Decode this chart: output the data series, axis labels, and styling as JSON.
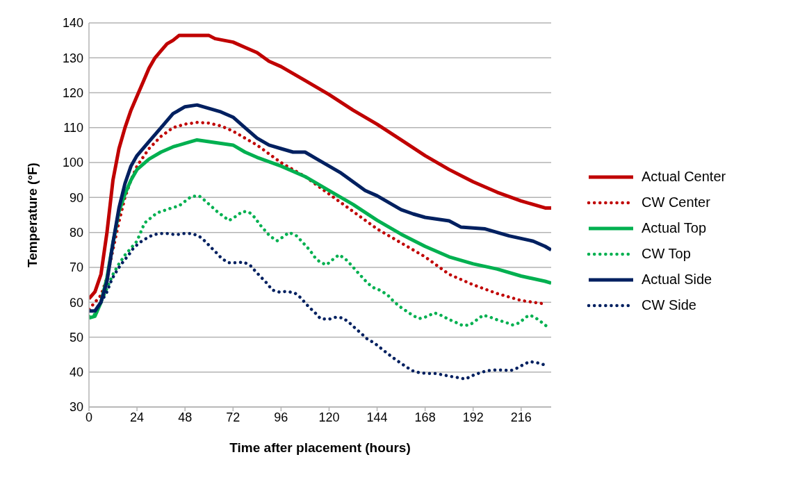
{
  "chart_data": {
    "type": "line",
    "xlabel": "Time after placement (hours)",
    "ylabel": "Temperature (°F)",
    "xlim": [
      0,
      231
    ],
    "xticks": [
      0,
      24,
      48,
      72,
      96,
      120,
      144,
      168,
      192,
      216
    ],
    "ylim": [
      30,
      140
    ],
    "yticks": [
      30,
      40,
      50,
      60,
      70,
      80,
      90,
      100,
      110,
      120,
      130,
      140
    ],
    "grid": "y",
    "legend": "right",
    "marker": "none",
    "series": [
      {
        "name": "Actual Center",
        "color": "#c00000",
        "line_style": "solid",
        "x": [
          0,
          3,
          6,
          9,
          12,
          15,
          18,
          21,
          24,
          27,
          30,
          33,
          36,
          39,
          42,
          45,
          60,
          63,
          72,
          78,
          84,
          90,
          96,
          102,
          108,
          120,
          132,
          144,
          156,
          168,
          180,
          192,
          204,
          216,
          228,
          231
        ],
        "values": [
          61,
          63,
          68,
          80,
          95,
          104,
          110,
          115,
          119,
          123,
          127,
          130,
          132,
          134,
          135,
          136.4,
          136.4,
          135.5,
          134.5,
          133,
          131.5,
          129,
          127.5,
          125.5,
          123.5,
          119.5,
          115,
          111,
          106.5,
          102,
          98,
          94.5,
          91.5,
          89,
          87,
          87
        ]
      },
      {
        "name": "CW Center",
        "color": "#c00000",
        "line_style": "dotted",
        "x": [
          0,
          6,
          9,
          12,
          15,
          18,
          21,
          24,
          30,
          36,
          42,
          48,
          54,
          60,
          66,
          72,
          78,
          84,
          96,
          108,
          120,
          132,
          144,
          156,
          168,
          180,
          192,
          204,
          216,
          228
        ],
        "values": [
          58,
          62,
          67,
          75,
          83,
          90,
          95,
          99,
          104,
          107.5,
          110,
          111,
          111.5,
          111.3,
          110.5,
          109,
          107,
          105,
          100,
          96,
          91,
          86,
          81,
          77,
          73,
          68,
          65,
          62.5,
          60.5,
          59.5
        ]
      },
      {
        "name": "Actual Top",
        "color": "#00b050",
        "line_style": "solid",
        "x": [
          0,
          3,
          6,
          9,
          12,
          15,
          18,
          21,
          24,
          30,
          36,
          42,
          48,
          54,
          60,
          72,
          78,
          84,
          96,
          108,
          120,
          132,
          144,
          156,
          168,
          180,
          192,
          204,
          216,
          228,
          231
        ],
        "values": [
          55.5,
          56,
          60,
          67,
          77,
          86,
          91,
          95,
          98,
          101,
          103,
          104.5,
          105.5,
          106.5,
          106,
          105,
          103,
          101.5,
          99,
          96,
          92,
          88,
          83.5,
          79.5,
          76,
          73,
          71,
          69.5,
          67.5,
          66,
          65.5
        ]
      },
      {
        "name": "CW Top",
        "color": "#00b050",
        "line_style": "dotted",
        "x": [
          0,
          3,
          6,
          9,
          12,
          15,
          18,
          21,
          24,
          27.8,
          34,
          41.3,
          45,
          51.2,
          55,
          58.2,
          64,
          70,
          73.4,
          76.7,
          80,
          83,
          85.3,
          90.5,
          94,
          97,
          100,
          103.8,
          106.4,
          110.4,
          112.7,
          115.4,
          118.7,
          122,
          125,
          128.3,
          131,
          133.6,
          136.5,
          139.2,
          142.5,
          146,
          149.4,
          152,
          155,
          158.3,
          161.6,
          165,
          169,
          172.6,
          176.2,
          179.8,
          183.1,
          186.8,
          190.4,
          193.7,
          197,
          200.7,
          204.3,
          208,
          211.6,
          215.2,
          218.2,
          220.5,
          223.8,
          227.1,
          230
        ],
        "values": [
          56,
          56.5,
          60,
          64,
          68,
          71,
          73.5,
          75.5,
          77.5,
          82.7,
          85.6,
          87,
          87.6,
          90.3,
          90.5,
          89,
          86,
          83.4,
          84.6,
          86,
          85.8,
          84.2,
          82.3,
          78.9,
          77.6,
          78.7,
          80,
          79,
          77.4,
          74.9,
          73,
          71.5,
          70.7,
          72.3,
          73.6,
          72.3,
          70.7,
          69,
          67.2,
          65.5,
          64.1,
          63.3,
          62,
          60.4,
          58.9,
          57.6,
          56.3,
          55.3,
          55.9,
          57,
          56.2,
          55.1,
          54.3,
          53.3,
          53.5,
          54.9,
          56.3,
          55.7,
          54.9,
          54.3,
          53.5,
          54.1,
          55.7,
          56.3,
          55.3,
          53.9,
          52.5
        ]
      },
      {
        "name": "Actual Side",
        "color": "#002060",
        "line_style": "solid",
        "x": [
          0,
          3,
          6,
          9,
          12,
          15,
          18,
          21,
          24,
          30,
          36,
          42,
          48,
          54,
          60,
          66,
          72,
          78,
          84,
          90,
          96,
          102,
          108,
          114,
          120,
          126,
          132,
          138,
          144,
          150,
          156,
          162,
          168,
          180,
          186,
          198,
          204,
          210,
          222,
          228,
          231
        ],
        "values": [
          57.5,
          57.5,
          60,
          66,
          77,
          87,
          94,
          99,
          102,
          106,
          110,
          114,
          116,
          116.5,
          115.5,
          114.5,
          113,
          110,
          107,
          105,
          104,
          103,
          103,
          101,
          99,
          97,
          94.5,
          92,
          90.5,
          88.5,
          86.5,
          85.3,
          84.3,
          83.3,
          81.5,
          81,
          80,
          79,
          77.5,
          76,
          75
        ]
      },
      {
        "name": "CW Side",
        "color": "#002060",
        "line_style": "dotted",
        "x": [
          0,
          3,
          6,
          9,
          10.9,
          12.6,
          14.9,
          17.2,
          19.8,
          22.1,
          25.1,
          28.4,
          32,
          35.7,
          39.7,
          43.3,
          47.3,
          51.2,
          54.9,
          58.2,
          60.8,
          63.8,
          66.4,
          69.8,
          73.4,
          77.4,
          80.7,
          83.3,
          86.3,
          89,
          91.6,
          95.2,
          98.8,
          102.8,
          105.8,
          108.4,
          110,
          113,
          115.7,
          119.7,
          123.3,
          127,
          130.2,
          133.2,
          136.2,
          139.2,
          142.5,
          145.5,
          148.8,
          152,
          155,
          158.3,
          161.6,
          165.3,
          169.3,
          173.2,
          176.9,
          180.5,
          184.5,
          188.1,
          191.7,
          195.4,
          199,
          203,
          207,
          210.6,
          214.2,
          217.9,
          220.5,
          224.5,
          228.1
        ],
        "values": [
          57.5,
          57.5,
          60,
          63,
          65.8,
          67.8,
          69.9,
          71.7,
          73.5,
          75.4,
          77,
          78.2,
          79.3,
          79.7,
          79.7,
          79.3,
          79.7,
          79.7,
          79,
          77.4,
          75.8,
          74.1,
          72.5,
          71.3,
          71.3,
          71.5,
          70.5,
          68.8,
          67,
          65.4,
          63.5,
          62.9,
          63.1,
          62.7,
          61.3,
          59.6,
          58.6,
          57,
          55.3,
          55.1,
          55.7,
          55.5,
          54.1,
          52.5,
          51,
          49.4,
          48.4,
          47,
          45.5,
          44.1,
          42.9,
          41.6,
          40.4,
          39.8,
          39.6,
          39.6,
          39.2,
          38.8,
          38.4,
          38,
          39,
          39.8,
          40.4,
          40.6,
          40.6,
          40.4,
          41.2,
          42.4,
          43,
          42.6,
          42
        ]
      }
    ]
  }
}
